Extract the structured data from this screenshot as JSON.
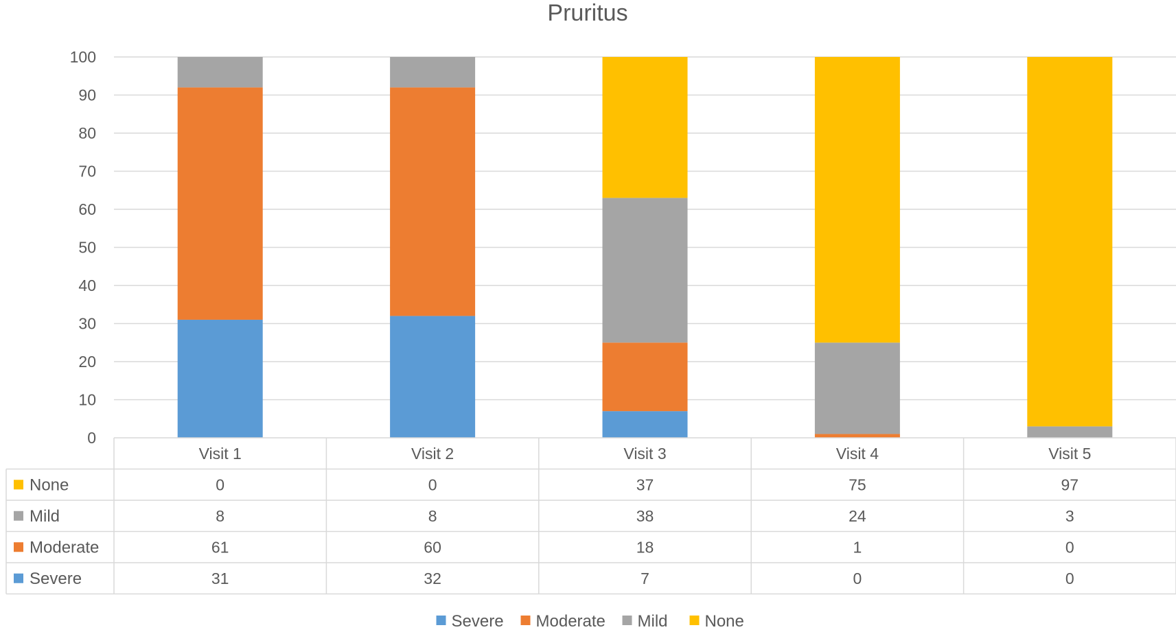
{
  "chart_data": {
    "type": "bar",
    "stacked": true,
    "title": "Pruritus",
    "xlabel": "",
    "ylabel": "",
    "ylim": [
      0,
      100
    ],
    "yticks": [
      0,
      10,
      20,
      30,
      40,
      50,
      60,
      70,
      80,
      90,
      100
    ],
    "grid": true,
    "legend_position": "bottom",
    "data_table": true,
    "categories": [
      "Visit 1",
      "Visit 2",
      "Visit 3",
      "Visit 4",
      "Visit 5"
    ],
    "series": [
      {
        "name": "Severe",
        "color": "#5B9BD5",
        "values": [
          31,
          32,
          7,
          0,
          0
        ]
      },
      {
        "name": "Moderate",
        "color": "#ED7D31",
        "values": [
          61,
          60,
          18,
          1,
          0
        ]
      },
      {
        "name": "Mild",
        "color": "#A5A5A5",
        "values": [
          8,
          8,
          38,
          24,
          3
        ]
      },
      {
        "name": "None",
        "color": "#FFC000",
        "values": [
          0,
          0,
          37,
          75,
          97
        ]
      }
    ],
    "table_row_order": [
      "None",
      "Mild",
      "Moderate",
      "Severe"
    ]
  }
}
